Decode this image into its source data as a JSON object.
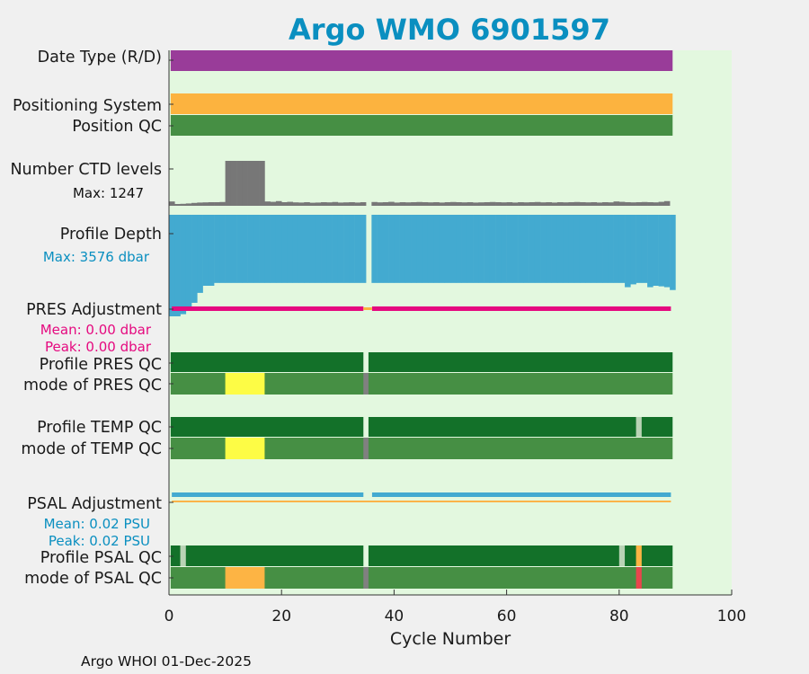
{
  "chart_data": {
    "type": "timeline",
    "title": "Argo WMO 6901597",
    "xlabel": "Cycle Number",
    "xlim": [
      0,
      100
    ],
    "xticks": [
      "0",
      "20",
      "40",
      "60",
      "80",
      "100"
    ],
    "footer": "Argo WHOI 01-Dec-2025",
    "colors": {
      "plot_bg": "#e3f8df",
      "date_type": "#993c99",
      "positioning": "#fcb33f",
      "good": "#468f44",
      "profile_good": "#137129",
      "missing": "#808080",
      "yellow": "#fdfc45",
      "orange_qc": "#fdb444",
      "red_qc": "#e8454d",
      "light": "#b9d3b5",
      "ctd": "#777777",
      "depth": "#43aad0",
      "pres_adj": "#e5097f",
      "psal_adj": "#fbb349"
    },
    "rows": {
      "date_type": {
        "label": "Date Type (R/D)"
      },
      "positioning": {
        "label": "Positioning System"
      },
      "position_qc": {
        "label": "Position QC"
      },
      "ctd_levels": {
        "label": "Number CTD levels",
        "max_label": "Max: 1247"
      },
      "profile_depth": {
        "label": "Profile Depth",
        "max_label": "Max: 3576 dbar"
      },
      "pres_adjustment": {
        "label": "PRES Adjustment",
        "mean_label": "Mean: 0.00 dbar",
        "peak_label": "Peak: 0.00 dbar"
      },
      "profile_pres_qc": {
        "label": "Profile PRES QC"
      },
      "mode_pres_qc": {
        "label": "mode of PRES QC"
      },
      "profile_temp_qc": {
        "label": "Profile TEMP QC"
      },
      "mode_temp_qc": {
        "label": "mode of TEMP QC"
      },
      "psal_adjustment": {
        "label": "PSAL Adjustment",
        "mean_label": "Mean: 0.02 PSU",
        "peak_label": "Peak: 0.02 PSU"
      },
      "profile_psal_qc": {
        "label": "Profile PSAL QC"
      },
      "mode_psal_qc": {
        "label": "mode of PSAL QC"
      }
    },
    "cycles_range": [
      0,
      89
    ],
    "missing_cycle": 35,
    "ctd_levels": [
      120,
      40,
      55,
      65,
      80,
      90,
      95,
      100,
      100,
      105,
      1247,
      1247,
      1247,
      1247,
      1247,
      1247,
      1247,
      120,
      110,
      130,
      100,
      110,
      95,
      90,
      100,
      85,
      90,
      100,
      95,
      105,
      90,
      95,
      100,
      90,
      100,
      0,
      105,
      95,
      100,
      110,
      90,
      100,
      95,
      100,
      105,
      100,
      95,
      100,
      90,
      100,
      105,
      100,
      95,
      100,
      90,
      95,
      100,
      105,
      100,
      95,
      100,
      90,
      100,
      95,
      100,
      105,
      95,
      100,
      90,
      100,
      95,
      100,
      105,
      100,
      95,
      100,
      90,
      100,
      95,
      120,
      110,
      100,
      95,
      100,
      105,
      100,
      95,
      110,
      130
    ],
    "profile_depth": [
      3576,
      3576,
      3500,
      3350,
      3100,
      2750,
      2500,
      2500,
      2400,
      2400,
      2400,
      2400,
      2400,
      2400,
      2400,
      2400,
      2400,
      2400,
      2400,
      2400,
      2400,
      2400,
      2400,
      2400,
      2400,
      2400,
      2400,
      2400,
      2400,
      2400,
      2400,
      2400,
      2400,
      2400,
      2400,
      0,
      2400,
      2400,
      2400,
      2400,
      2400,
      2400,
      2400,
      2400,
      2400,
      2400,
      2400,
      2400,
      2400,
      2400,
      2400,
      2400,
      2400,
      2400,
      2400,
      2400,
      2400,
      2400,
      2400,
      2400,
      2400,
      2400,
      2400,
      2400,
      2400,
      2400,
      2400,
      2400,
      2400,
      2400,
      2400,
      2400,
      2400,
      2400,
      2400,
      2400,
      2400,
      2400,
      2400,
      2400,
      2400,
      2550,
      2450,
      2400,
      2400,
      2550,
      2500,
      2520,
      2550,
      2650
    ],
    "profile_pres_qc": {
      "good_to": 89,
      "gap": 35
    },
    "mode_pres_qc": {
      "yellow_range": [
        10,
        16
      ],
      "gap": 35
    },
    "profile_temp_qc": {
      "gap": 35,
      "light_cycle": 83
    },
    "mode_temp_qc": {
      "yellow_range": [
        10,
        16
      ],
      "gap": 35
    },
    "profile_psal_qc": {
      "gap": 35,
      "light_cycles": [
        2,
        80
      ],
      "orange_cycles": [
        83
      ]
    },
    "mode_psal_qc": {
      "orange_range": [
        10,
        16
      ],
      "gap": 35,
      "red_cycles": [
        83
      ]
    }
  }
}
